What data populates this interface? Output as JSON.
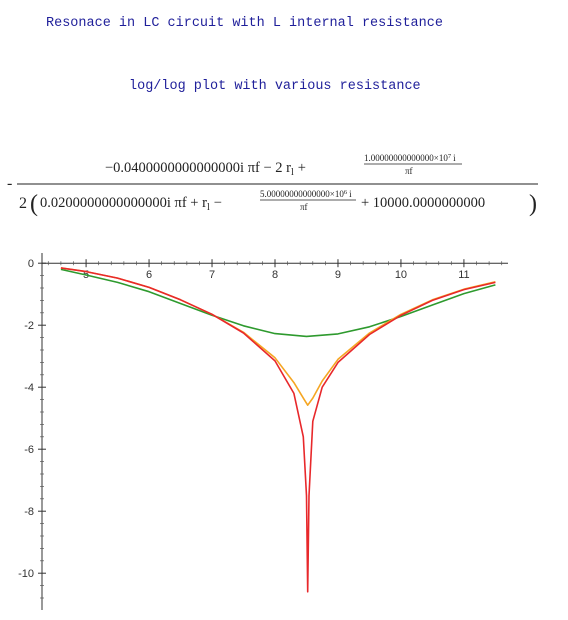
{
  "header": {
    "title": "Resonace in LC circuit with L internal resistance",
    "subtitle": "log/log plot with various resistance"
  },
  "formula": {
    "lead_sign": "-",
    "numerator_main": "−0.0400000000000000i πf − 2 r",
    "numerator_sub": "l",
    "numerator_plus": "+",
    "numerator_frac_num": "1.00000000000000×10",
    "numerator_frac_exp": "7",
    "numerator_frac_i": "i",
    "numerator_frac_den": "πf",
    "den_coeff": "2",
    "den_open": "(",
    "den_main": "0.0200000000000000i πf + r",
    "den_sub": "l",
    "den_minus": "−",
    "den_frac_num": "5.00000000000000×10",
    "den_frac_exp": "6",
    "den_frac_i": "i",
    "den_frac_den": "πf",
    "den_tail": "+ 10000.0000000000",
    "den_close": ")"
  },
  "chart_data": {
    "type": "line",
    "title": "",
    "xlabel": "",
    "ylabel": "",
    "xlim": [
      4.3,
      11.7
    ],
    "ylim": [
      -10.8,
      0.2
    ],
    "x_ticks": [
      5,
      6,
      7,
      8,
      9,
      10,
      11
    ],
    "y_ticks": [
      0,
      -2,
      -4,
      -6,
      -8,
      -10
    ],
    "x_tick_labels": [
      "5",
      "6",
      "7",
      "8",
      "9",
      "10",
      "11"
    ],
    "y_tick_labels": [
      "0",
      "-2",
      "-4",
      "-6",
      "-8",
      "-10"
    ],
    "grid": false,
    "resonance_x": 8.52,
    "series": [
      {
        "color": "#e8282b",
        "x": [
          4.6,
          5.0,
          5.5,
          6.0,
          6.5,
          7.0,
          7.5,
          8.0,
          8.3,
          8.45,
          8.5,
          8.52,
          8.54,
          8.6,
          8.75,
          9.0,
          9.5,
          10.0,
          10.5,
          11.0,
          11.5
        ],
        "y": [
          -0.15,
          -0.27,
          -0.48,
          -0.78,
          -1.18,
          -1.65,
          -2.25,
          -3.15,
          -4.2,
          -5.6,
          -7.5,
          -10.6,
          -7.5,
          -5.1,
          -4.0,
          -3.2,
          -2.3,
          -1.68,
          -1.2,
          -0.85,
          -0.62
        ]
      },
      {
        "color": "#f5a623",
        "x": [
          4.6,
          5.0,
          5.5,
          6.0,
          6.5,
          7.0,
          7.5,
          8.0,
          8.3,
          8.45,
          8.52,
          8.6,
          8.75,
          9.0,
          9.5,
          10.0,
          10.5,
          11.0,
          11.5
        ],
        "y": [
          -0.15,
          -0.27,
          -0.48,
          -0.78,
          -1.18,
          -1.65,
          -2.23,
          -3.05,
          -3.85,
          -4.35,
          -4.58,
          -4.35,
          -3.8,
          -3.1,
          -2.25,
          -1.65,
          -1.18,
          -0.84,
          -0.6
        ]
      },
      {
        "color": "#2e9a2e",
        "x": [
          4.6,
          5.0,
          5.5,
          6.0,
          6.5,
          7.0,
          7.5,
          8.0,
          8.5,
          9.0,
          9.5,
          10.0,
          10.5,
          11.0,
          11.5
        ],
        "y": [
          -0.2,
          -0.38,
          -0.62,
          -0.92,
          -1.3,
          -1.68,
          -2.02,
          -2.27,
          -2.36,
          -2.28,
          -2.05,
          -1.72,
          -1.35,
          -0.98,
          -0.7
        ]
      }
    ]
  }
}
